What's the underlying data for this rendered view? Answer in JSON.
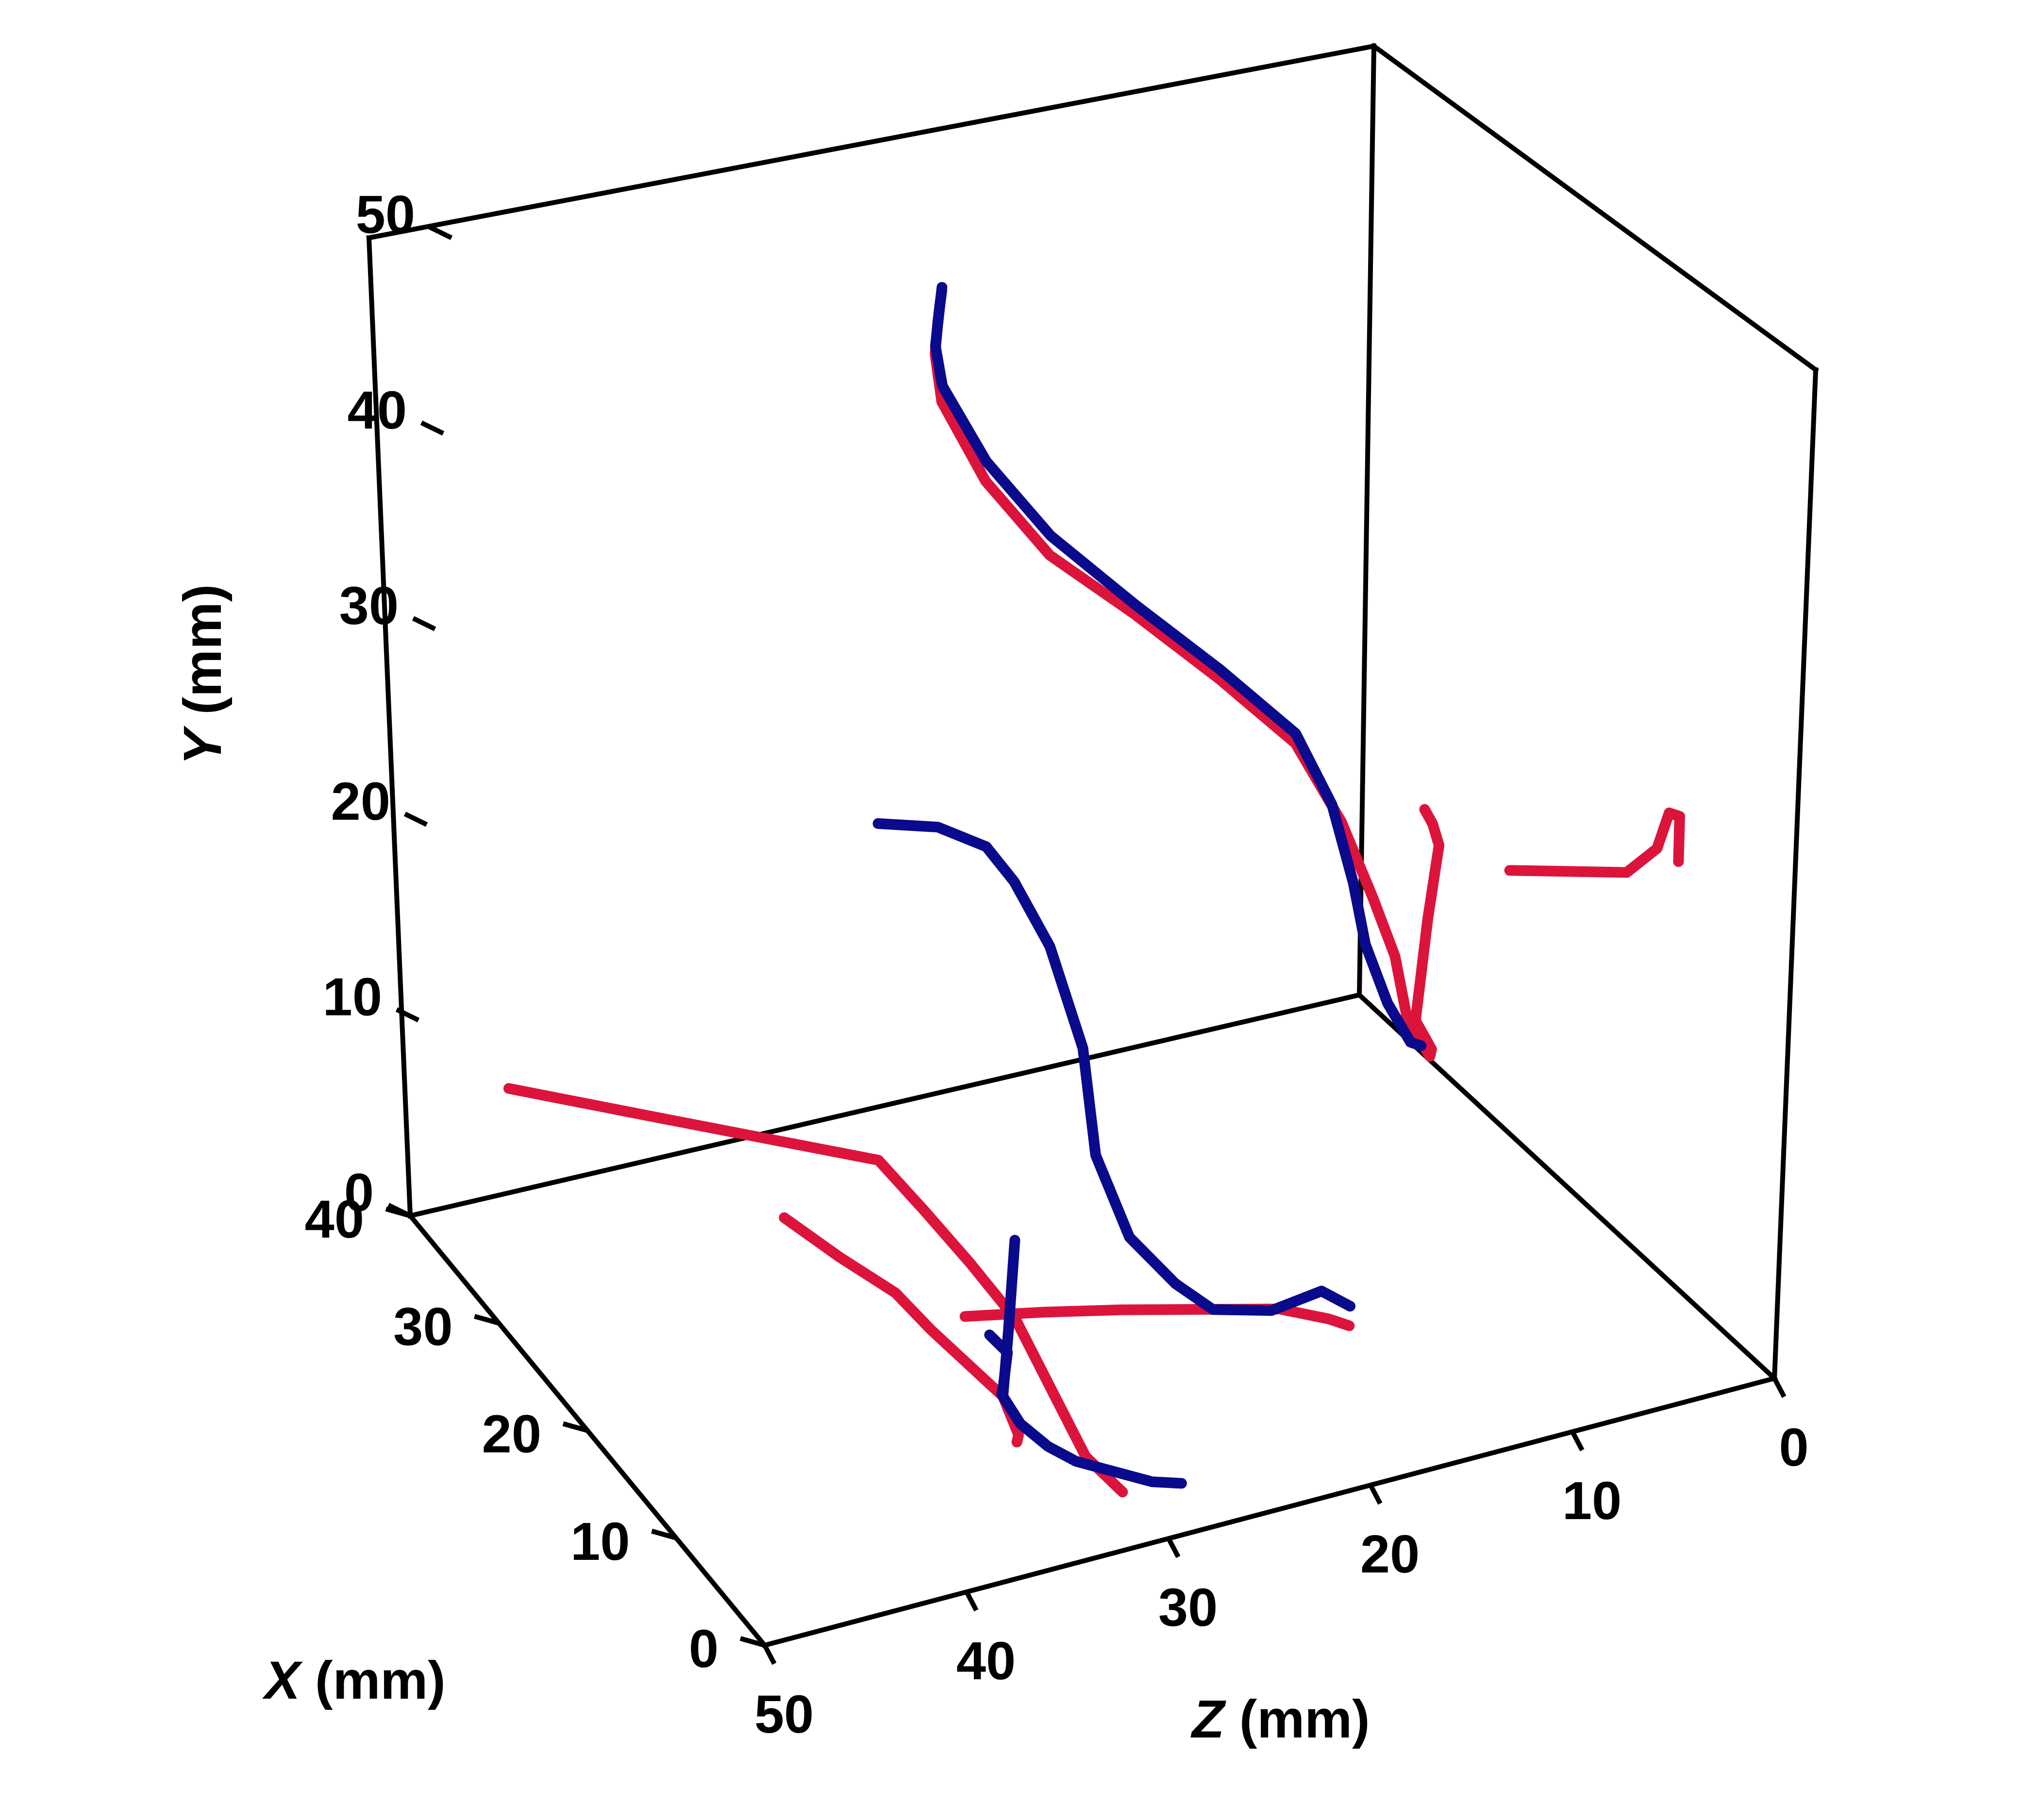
{
  "chart_data": {
    "type": "line3d",
    "xlabel_var": "X",
    "xlabel_unit": " (mm)",
    "ylabel_var": "Y",
    "ylabel_unit": " (mm)",
    "zlabel_var": "Z",
    "zlabel_unit": " (mm)",
    "xlim": [
      0,
      40
    ],
    "ylim": [
      0,
      50
    ],
    "zlim": [
      0,
      50
    ],
    "x_ticks": [
      "0",
      "10",
      "20",
      "30",
      "40"
    ],
    "y_ticks": [
      "0",
      "10",
      "20",
      "30",
      "40",
      "50"
    ],
    "z_ticks": [
      "0",
      "10",
      "20",
      "30",
      "40",
      "50"
    ],
    "grid": false,
    "colors": {
      "red": "#dc143c",
      "blue": "#0a0a8c"
    },
    "series": [
      {
        "color": "red",
        "segments": [
          [
            [
              30,
              47.3,
              30
            ],
            [
              28,
              48,
              31
            ],
            [
              26,
              48.5,
              32
            ],
            [
              24,
              48.2,
              33
            ],
            [
              22,
              47,
              33.5
            ],
            [
              18,
              45,
              33
            ],
            [
              14,
              43,
              31.5
            ],
            [
              10,
              41.5,
              29
            ],
            [
              7,
              39,
              26
            ],
            [
              5,
              36,
              23
            ],
            [
              4,
              32,
              21
            ],
            [
              3.5,
              28,
              19.5
            ],
            [
              3,
              25,
              18.5
            ],
            [
              2.5,
              22,
              18
            ],
            [
              2,
              20,
              17
            ],
            [
              4,
              19,
              16
            ],
            [
              6,
              18.5,
              15.5
            ],
            [
              8,
              18,
              15
            ],
            [
              12,
              17,
              13
            ],
            [
              16,
              16,
              11
            ],
            [
              20,
              15,
              9
            ],
            [
              24,
              13.5,
              7
            ],
            [
              28,
              12,
              5
            ],
            [
              32,
              10.5,
              3
            ],
            [
              36,
              9,
              1.5
            ],
            [
              38,
              8.5,
              1
            ]
          ],
          [
            [
              5,
              26.5,
              12
            ],
            [
              3,
              27,
              10
            ],
            [
              1,
              27.5,
              8
            ],
            [
              0,
              29,
              7
            ],
            [
              1,
              30,
              6
            ],
            [
              2,
              29,
              5
            ],
            [
              3,
              26,
              4.5
            ]
          ],
          [
            [
              30,
              12,
              50
            ],
            [
              28,
              11.5,
              47
            ],
            [
              26,
              11,
              44
            ],
            [
              23,
              10.5,
              40
            ],
            [
              20,
              10,
              36
            ],
            [
              17,
              8.8,
              35
            ],
            [
              14,
              7.5,
              34
            ],
            [
              11,
              6,
              33
            ],
            [
              8,
              4,
              32.5
            ],
            [
              5,
              2,
              32
            ],
            [
              3,
              1,
              31
            ]
          ],
          [
            [
              10,
              7.5,
              36
            ],
            [
              8,
              8,
              33
            ],
            [
              6,
              8.4,
              30
            ],
            [
              4,
              8.7,
              27
            ],
            [
              2,
              9,
              24
            ],
            [
              1,
              8.5,
              22
            ],
            [
              2,
              7.5,
              21
            ],
            [
              3,
              6.5,
              20
            ]
          ],
          [
            [
              6,
              3,
              35
            ],
            [
              8,
              2,
              34
            ],
            [
              12,
              1.5,
              33
            ],
            [
              16,
              1,
              33
            ],
            [
              20,
              0.5,
              33
            ],
            [
              24,
              0.2,
              33
            ],
            [
              28,
              0.1,
              34
            ],
            [
              32,
              0.2,
              35
            ]
          ]
        ]
      },
      {
        "color": "blue",
        "segments": [
          [
            [
              30,
              47.5,
              30
            ],
            [
              28,
              47.9,
              31
            ],
            [
              26,
              48.3,
              32
            ],
            [
              24,
              48.6,
              33
            ],
            [
              22,
              47.8,
              33.5
            ],
            [
              18,
              46,
              33
            ],
            [
              14,
              44,
              31.5
            ],
            [
              10,
              42,
              29
            ],
            [
              7,
              39.5,
              26
            ],
            [
              5,
              36.5,
              23
            ],
            [
              4,
              33,
              21.5
            ],
            [
              3.5,
              29,
              20.5
            ],
            [
              3,
              26,
              20
            ],
            [
              2.5,
              23,
              19
            ],
            [
              2,
              21,
              18
            ],
            [
              3,
              20,
              17
            ]
          ],
          [
            [
              28,
              22,
              33
            ],
            [
              28,
              21,
              30
            ],
            [
              27,
              20,
              28
            ],
            [
              26,
              18.5,
              27
            ],
            [
              24,
              16,
              26
            ],
            [
              20,
              13,
              26
            ],
            [
              16,
              10,
              27
            ],
            [
              12,
              8,
              27
            ],
            [
              9,
              7,
              26
            ],
            [
              7,
              6.5,
              25
            ],
            [
              5,
              7,
              23
            ],
            [
              4,
              8,
              21
            ],
            [
              3,
              7.5,
              20
            ]
          ],
          [
            [
              20,
              4,
              29
            ],
            [
              18,
              3,
              30
            ],
            [
              16,
              2,
              31
            ],
            [
              14,
              1.8,
              32
            ],
            [
              12,
              1.5,
              33
            ],
            [
              10,
              1.2,
              33
            ],
            [
              8,
              1,
              32.5
            ],
            [
              6,
              1.2,
              32
            ],
            [
              4,
              1.5,
              31
            ],
            [
              2,
              1.8,
              30
            ],
            [
              1,
              2,
              29
            ]
          ],
          [
            [
              10,
              3,
              34
            ],
            [
              12,
              2,
              33
            ],
            [
              14,
              1.5,
              32
            ],
            [
              16,
              1,
              31
            ],
            [
              18,
              0.8,
              31
            ]
          ]
        ]
      }
    ]
  }
}
